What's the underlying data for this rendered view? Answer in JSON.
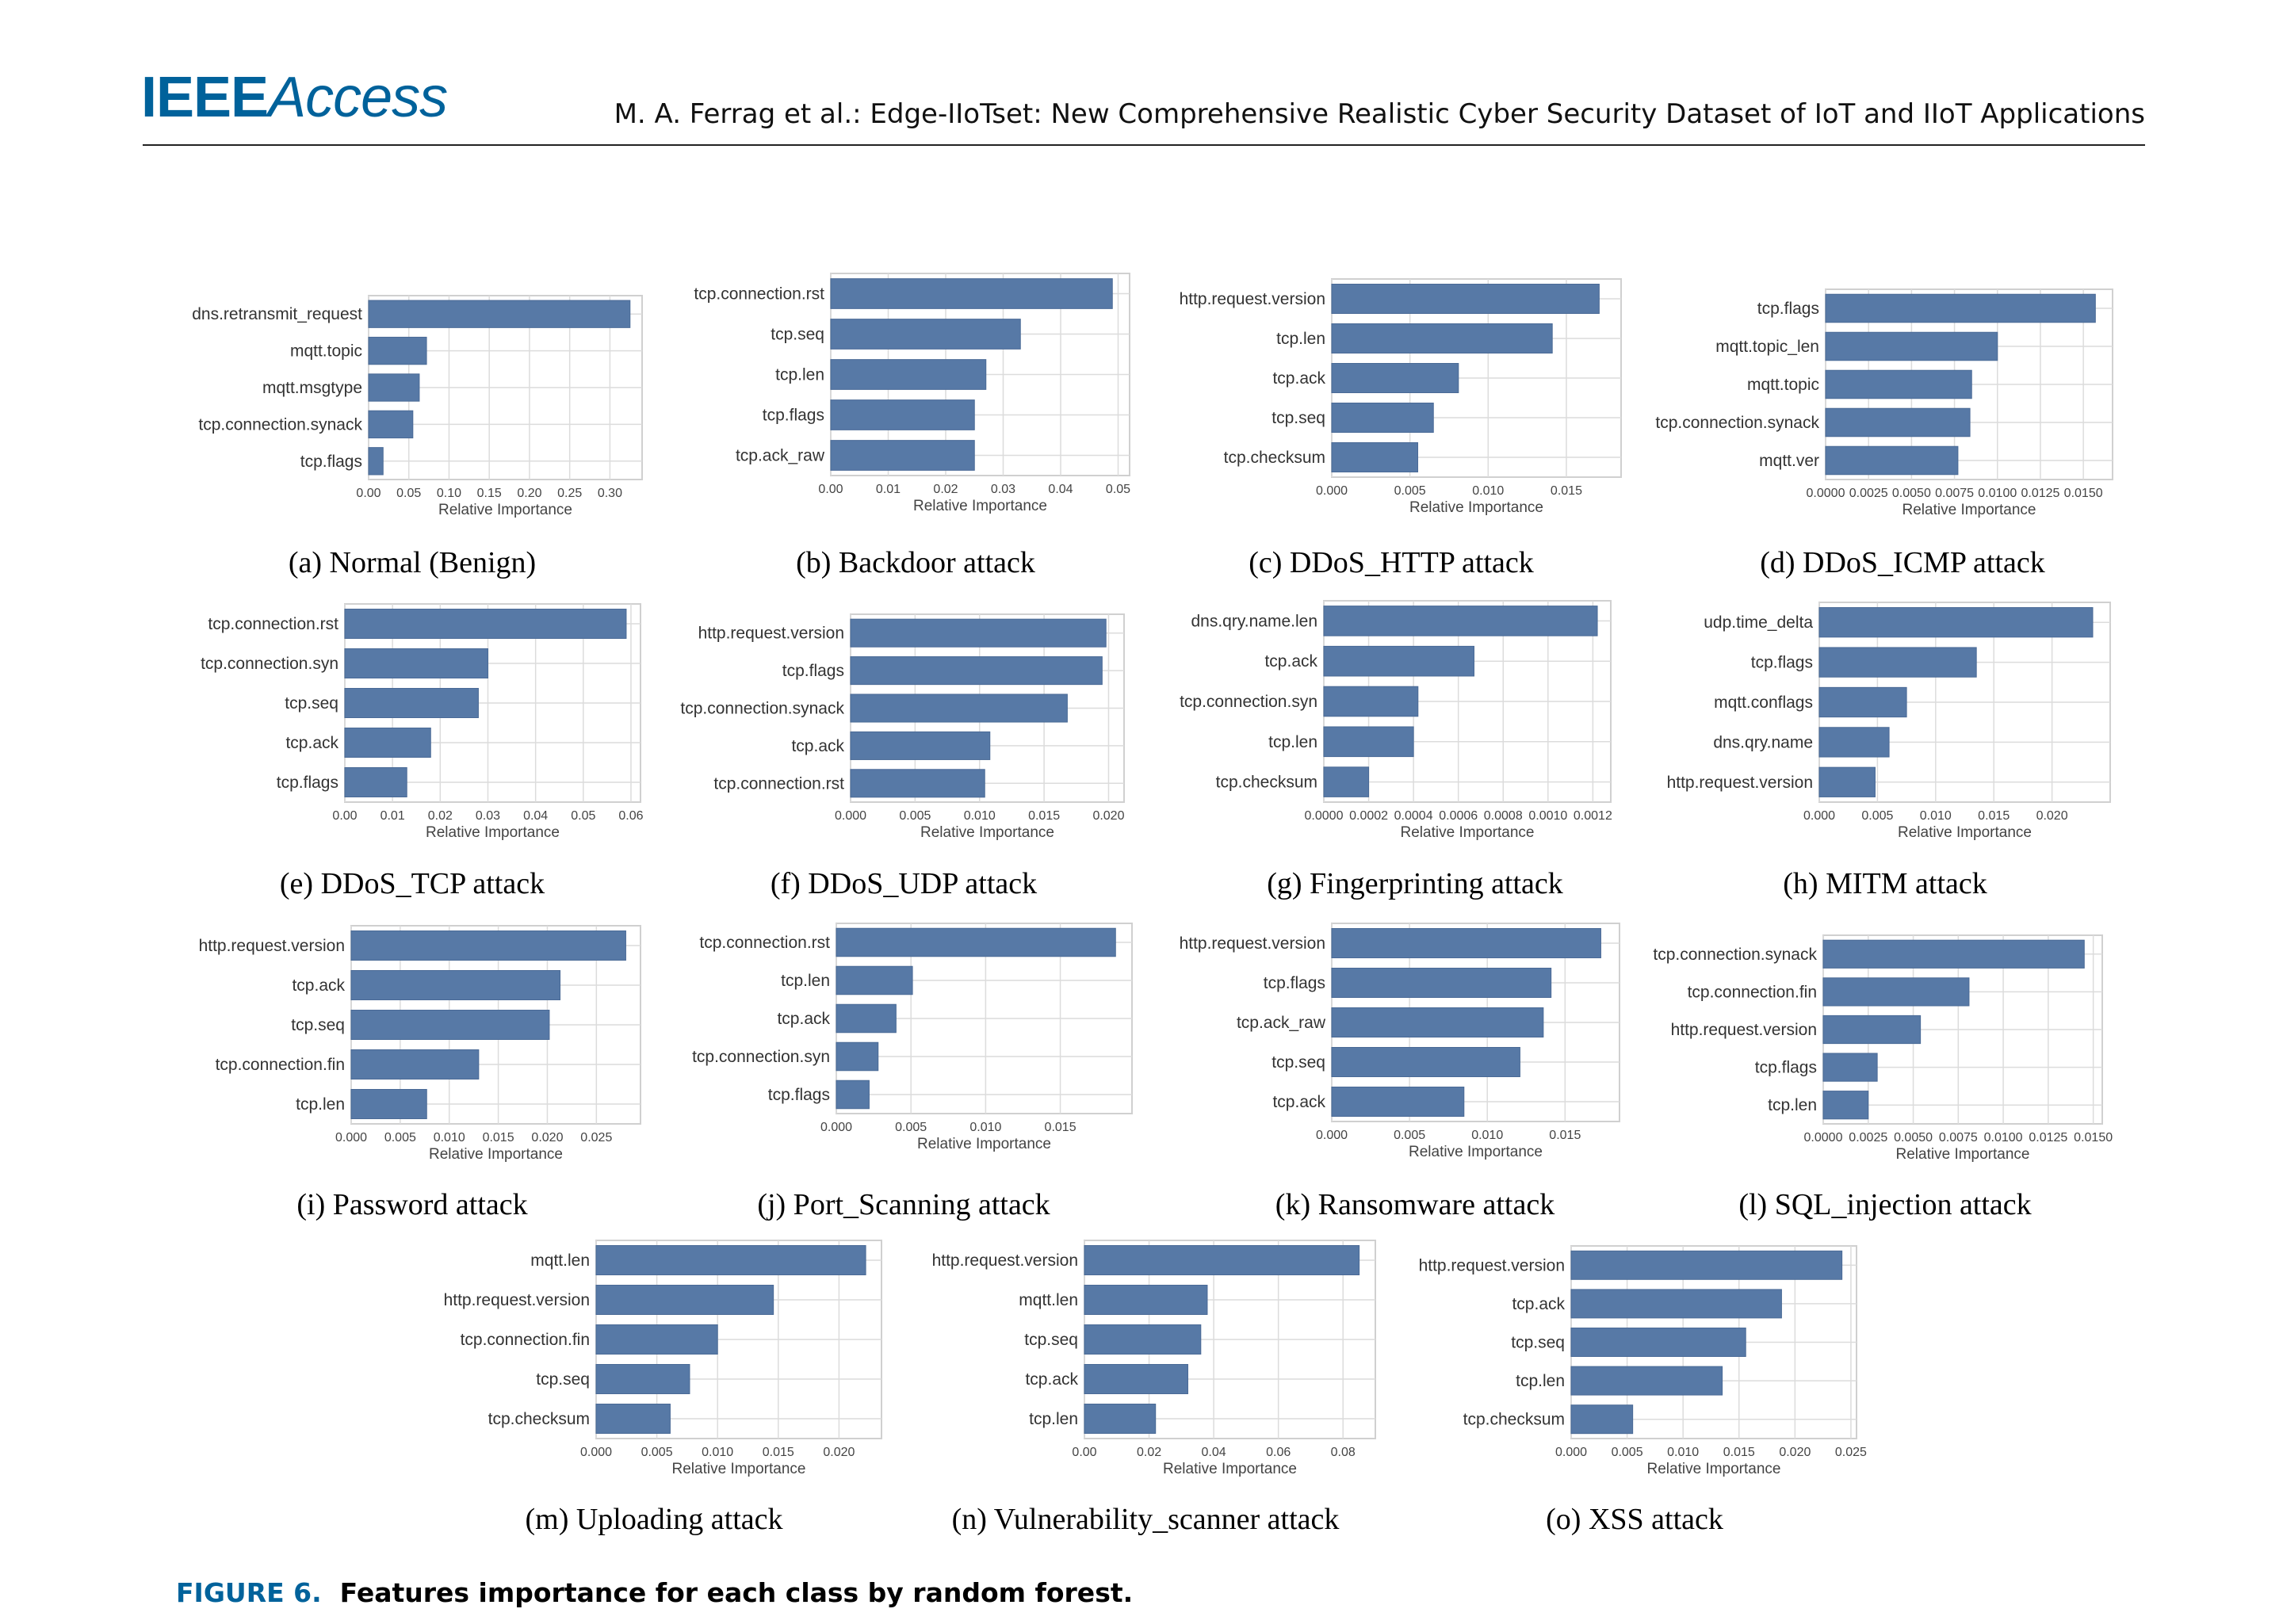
{
  "header": {
    "logo_ieee": "IEEE",
    "logo_access": "Access",
    "running_head": "M. A. Ferrag et al.: Edge-IIoTset: New Comprehensive Realistic Cyber Security Dataset of IoT and IIoT Applications"
  },
  "figure": {
    "label": "FIGURE 6.",
    "caption": "Features importance for each class by random forest."
  },
  "style": {
    "bar_color": "#5779a6",
    "grid_color": "#dcdcdc",
    "frame_color": "#d0d0d0",
    "ieee_blue": "#00629b"
  },
  "chart_data": [
    {
      "type": "bar",
      "orientation": "horizontal",
      "caption": "(a)  Normal (Benign)",
      "xlabel": "Relative Importance",
      "categories": [
        "dns.retransmit_request",
        "mqtt.topic",
        "mqtt.msgtype",
        "tcp.connection.synack",
        "tcp.flags"
      ],
      "values": [
        0.325,
        0.072,
        0.063,
        0.055,
        0.018
      ],
      "xlim": [
        0,
        0.34
      ],
      "xticks": [
        0,
        0.05,
        0.1,
        0.15,
        0.2,
        0.25,
        0.3
      ],
      "xtick_labels": [
        "0.00",
        "0.05",
        "0.10",
        "0.15",
        "0.20",
        "0.25",
        "0.30"
      ]
    },
    {
      "type": "bar",
      "orientation": "horizontal",
      "caption": "(b)  Backdoor attack",
      "xlabel": "Relative Importance",
      "categories": [
        "tcp.connection.rst",
        "tcp.seq",
        "tcp.len",
        "tcp.flags",
        "tcp.ack_raw"
      ],
      "values": [
        0.049,
        0.033,
        0.027,
        0.025,
        0.025
      ],
      "xlim": [
        0,
        0.052
      ],
      "xticks": [
        0,
        0.01,
        0.02,
        0.03,
        0.04,
        0.05
      ],
      "xtick_labels": [
        "0.00",
        "0.01",
        "0.02",
        "0.03",
        "0.04",
        "0.05"
      ]
    },
    {
      "type": "bar",
      "orientation": "horizontal",
      "caption": "(c)  DDoS_HTTP attack",
      "xlabel": "Relative Importance",
      "categories": [
        "http.request.version",
        "tcp.len",
        "tcp.ack",
        "tcp.seq",
        "tcp.checksum"
      ],
      "values": [
        0.0171,
        0.0141,
        0.0081,
        0.0065,
        0.0055
      ],
      "xlim": [
        0,
        0.0185
      ],
      "xticks": [
        0,
        0.005,
        0.01,
        0.015
      ],
      "xtick_labels": [
        "0.000",
        "0.005",
        "0.010",
        "0.015"
      ]
    },
    {
      "type": "bar",
      "orientation": "horizontal",
      "caption": "(d)  DDoS_ICMP attack",
      "xlabel": "Relative Importance",
      "categories": [
        "tcp.flags",
        "mqtt.topic_len",
        "mqtt.topic",
        "tcp.connection.synack",
        "mqtt.ver"
      ],
      "values": [
        0.0157,
        0.01,
        0.0085,
        0.0084,
        0.0077
      ],
      "xlim": [
        0,
        0.0167
      ],
      "xticks": [
        0,
        0.0025,
        0.005,
        0.0075,
        0.01,
        0.0125,
        0.015
      ],
      "xtick_labels": [
        "0.0000",
        "0.0025",
        "0.0050",
        "0.0075",
        "0.0100",
        "0.0125",
        "0.0150"
      ]
    },
    {
      "type": "bar",
      "orientation": "horizontal",
      "caption": "(e)  DDoS_TCP attack",
      "xlabel": "Relative Importance",
      "categories": [
        "tcp.connection.rst",
        "tcp.connection.syn",
        "tcp.seq",
        "tcp.ack",
        "tcp.flags"
      ],
      "values": [
        0.059,
        0.03,
        0.028,
        0.018,
        0.013
      ],
      "xlim": [
        0,
        0.062
      ],
      "xticks": [
        0,
        0.01,
        0.02,
        0.03,
        0.04,
        0.05,
        0.06
      ],
      "xtick_labels": [
        "0.00",
        "0.01",
        "0.02",
        "0.03",
        "0.04",
        "0.05",
        "0.06"
      ]
    },
    {
      "type": "bar",
      "orientation": "horizontal",
      "caption": "(f)  DDoS_UDP attack",
      "xlabel": "Relative Importance",
      "categories": [
        "http.request.version",
        "tcp.flags",
        "tcp.connection.synack",
        "tcp.ack",
        "tcp.connection.rst"
      ],
      "values": [
        0.0198,
        0.0195,
        0.0168,
        0.0108,
        0.0104
      ],
      "xlim": [
        0,
        0.0212
      ],
      "xticks": [
        0,
        0.005,
        0.01,
        0.015,
        0.02
      ],
      "xtick_labels": [
        "0.000",
        "0.005",
        "0.010",
        "0.015",
        "0.020"
      ]
    },
    {
      "type": "bar",
      "orientation": "horizontal",
      "caption": "(g)  Fingerprinting attack",
      "xlabel": "Relative Importance",
      "categories": [
        "dns.qry.name.len",
        "tcp.ack",
        "tcp.connection.syn",
        "tcp.len",
        "tcp.checksum"
      ],
      "values": [
        0.00122,
        0.00067,
        0.00042,
        0.0004,
        0.0002
      ],
      "xlim": [
        0,
        0.00128
      ],
      "xticks": [
        0,
        0.0002,
        0.0004,
        0.0006,
        0.0008,
        0.001,
        0.0012
      ],
      "xtick_labels": [
        "0.0000",
        "0.0002",
        "0.0004",
        "0.0006",
        "0.0008",
        "0.0010",
        "0.0012"
      ]
    },
    {
      "type": "bar",
      "orientation": "horizontal",
      "caption": "(h)  MITM attack",
      "xlabel": "Relative Importance",
      "categories": [
        "udp.time_delta",
        "tcp.flags",
        "mqtt.conflags",
        "dns.qry.name",
        "http.request.version"
      ],
      "values": [
        0.0235,
        0.0135,
        0.0075,
        0.006,
        0.0048
      ],
      "xlim": [
        0,
        0.025
      ],
      "xticks": [
        0,
        0.005,
        0.01,
        0.015,
        0.02
      ],
      "xtick_labels": [
        "0.000",
        "0.005",
        "0.010",
        "0.015",
        "0.020"
      ]
    },
    {
      "type": "bar",
      "orientation": "horizontal",
      "caption": "(i)  Password attack",
      "xlabel": "Relative Importance",
      "categories": [
        "http.request.version",
        "tcp.ack",
        "tcp.seq",
        "tcp.connection.fin",
        "tcp.len"
      ],
      "values": [
        0.028,
        0.0213,
        0.0202,
        0.013,
        0.0077
      ],
      "xlim": [
        0,
        0.0295
      ],
      "xticks": [
        0,
        0.005,
        0.01,
        0.015,
        0.02,
        0.025
      ],
      "xtick_labels": [
        "0.000",
        "0.005",
        "0.010",
        "0.015",
        "0.020",
        "0.025"
      ]
    },
    {
      "type": "bar",
      "orientation": "horizontal",
      "caption": "(j)  Port_Scanning attack",
      "xlabel": "Relative Importance",
      "categories": [
        "tcp.connection.rst",
        "tcp.len",
        "tcp.ack",
        "tcp.connection.syn",
        "tcp.flags"
      ],
      "values": [
        0.0187,
        0.0051,
        0.004,
        0.0028,
        0.0022
      ],
      "xlim": [
        0,
        0.0198
      ],
      "xticks": [
        0,
        0.005,
        0.01,
        0.015
      ],
      "xtick_labels": [
        "0.000",
        "0.005",
        "0.010",
        "0.015"
      ]
    },
    {
      "type": "bar",
      "orientation": "horizontal",
      "caption": "(k)  Ransomware attack",
      "xlabel": "Relative Importance",
      "categories": [
        "http.request.version",
        "tcp.flags",
        "tcp.ack_raw",
        "tcp.seq",
        "tcp.ack"
      ],
      "values": [
        0.0173,
        0.0141,
        0.0136,
        0.0121,
        0.0085
      ],
      "xlim": [
        0,
        0.0185
      ],
      "xticks": [
        0,
        0.005,
        0.01,
        0.015
      ],
      "xtick_labels": [
        "0.000",
        "0.005",
        "0.010",
        "0.015"
      ]
    },
    {
      "type": "bar",
      "orientation": "horizontal",
      "caption": "(l)  SQL_injection attack",
      "xlabel": "Relative Importance",
      "categories": [
        "tcp.connection.synack",
        "tcp.connection.fin",
        "http.request.version",
        "tcp.flags",
        "tcp.len"
      ],
      "values": [
        0.0145,
        0.0081,
        0.0054,
        0.003,
        0.0025
      ],
      "xlim": [
        0,
        0.0155
      ],
      "xticks": [
        0,
        0.0025,
        0.005,
        0.0075,
        0.01,
        0.0125,
        0.015
      ],
      "xtick_labels": [
        "0.0000",
        "0.0025",
        "0.0050",
        "0.0075",
        "0.0100",
        "0.0125",
        "0.0150"
      ]
    },
    {
      "type": "bar",
      "orientation": "horizontal",
      "caption": "(m)  Uploading attack",
      "xlabel": "Relative Importance",
      "categories": [
        "mqtt.len",
        "http.request.version",
        "tcp.connection.fin",
        "tcp.seq",
        "tcp.checksum"
      ],
      "values": [
        0.0222,
        0.0146,
        0.01,
        0.0077,
        0.0061
      ],
      "xlim": [
        0,
        0.0235
      ],
      "xticks": [
        0,
        0.005,
        0.01,
        0.015,
        0.02
      ],
      "xtick_labels": [
        "0.000",
        "0.005",
        "0.010",
        "0.015",
        "0.020"
      ]
    },
    {
      "type": "bar",
      "orientation": "horizontal",
      "caption": "(n)  Vulnerability_scanner attack",
      "xlabel": "Relative Importance",
      "categories": [
        "http.request.version",
        "mqtt.len",
        "tcp.seq",
        "tcp.ack",
        "tcp.len"
      ],
      "values": [
        0.085,
        0.038,
        0.036,
        0.032,
        0.022
      ],
      "xlim": [
        0,
        0.09
      ],
      "xticks": [
        0,
        0.02,
        0.04,
        0.06,
        0.08
      ],
      "xtick_labels": [
        "0.00",
        "0.02",
        "0.04",
        "0.06",
        "0.08"
      ]
    },
    {
      "type": "bar",
      "orientation": "horizontal",
      "caption": "(o)  XSS attack",
      "xlabel": "Relative Importance",
      "categories": [
        "http.request.version",
        "tcp.ack",
        "tcp.seq",
        "tcp.len",
        "tcp.checksum"
      ],
      "values": [
        0.0242,
        0.0188,
        0.0156,
        0.0135,
        0.0055
      ],
      "xlim": [
        0,
        0.0255
      ],
      "xticks": [
        0,
        0.005,
        0.01,
        0.015,
        0.02,
        0.025
      ],
      "xtick_labels": [
        "0.000",
        "0.005",
        "0.010",
        "0.015",
        "0.020",
        "0.025"
      ]
    }
  ]
}
